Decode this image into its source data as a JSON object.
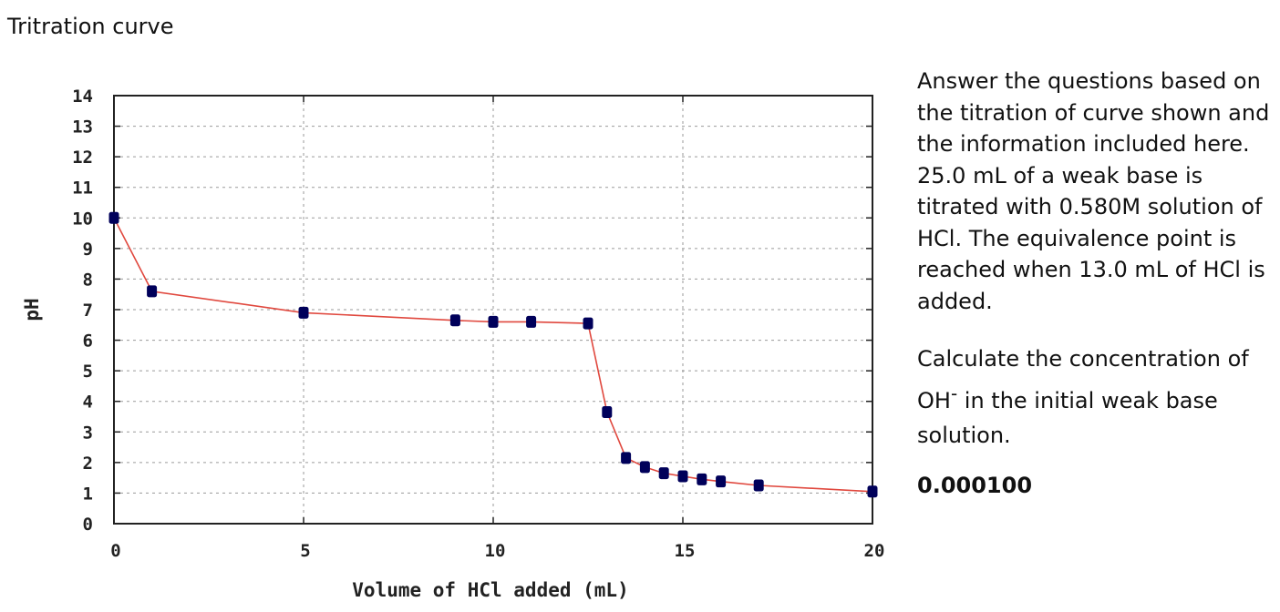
{
  "page": {
    "title": "Tritration curve"
  },
  "panel": {
    "info_text": "Answer the questions based on the titration of curve shown and the information included here. 25.0 mL of a weak base is titrated with 0.580M solution of HCl. The equivalence point is reached when 13.0 mL of HCl is added.",
    "question_before": "Calculate the concentration of OH",
    "question_superscript": "-",
    "question_after": " in the initial weak base solution.",
    "answer": "0.000100"
  },
  "chart_data": {
    "type": "line",
    "title": "",
    "xlabel": "Volume of HCl added (mL)",
    "ylabel": "pH",
    "xlim": [
      0,
      20
    ],
    "ylim": [
      0,
      14
    ],
    "xticks": [
      0,
      5,
      10,
      15,
      20
    ],
    "yticks": [
      0,
      1,
      2,
      3,
      4,
      5,
      6,
      7,
      8,
      9,
      10,
      11,
      12,
      13,
      14
    ],
    "grid": true,
    "legend": "none",
    "series": [
      {
        "x": [
          0,
          1,
          5,
          9,
          10,
          11,
          12.5,
          13,
          13.5,
          14,
          14.5,
          15,
          15.5,
          16,
          17,
          20
        ],
        "y": [
          10.0,
          7.6,
          6.9,
          6.65,
          6.6,
          6.6,
          6.55,
          3.65,
          2.15,
          1.85,
          1.65,
          1.55,
          1.45,
          1.38,
          1.25,
          1.05
        ]
      }
    ],
    "line_color": "#e0483e",
    "marker_color": "#00005a"
  }
}
